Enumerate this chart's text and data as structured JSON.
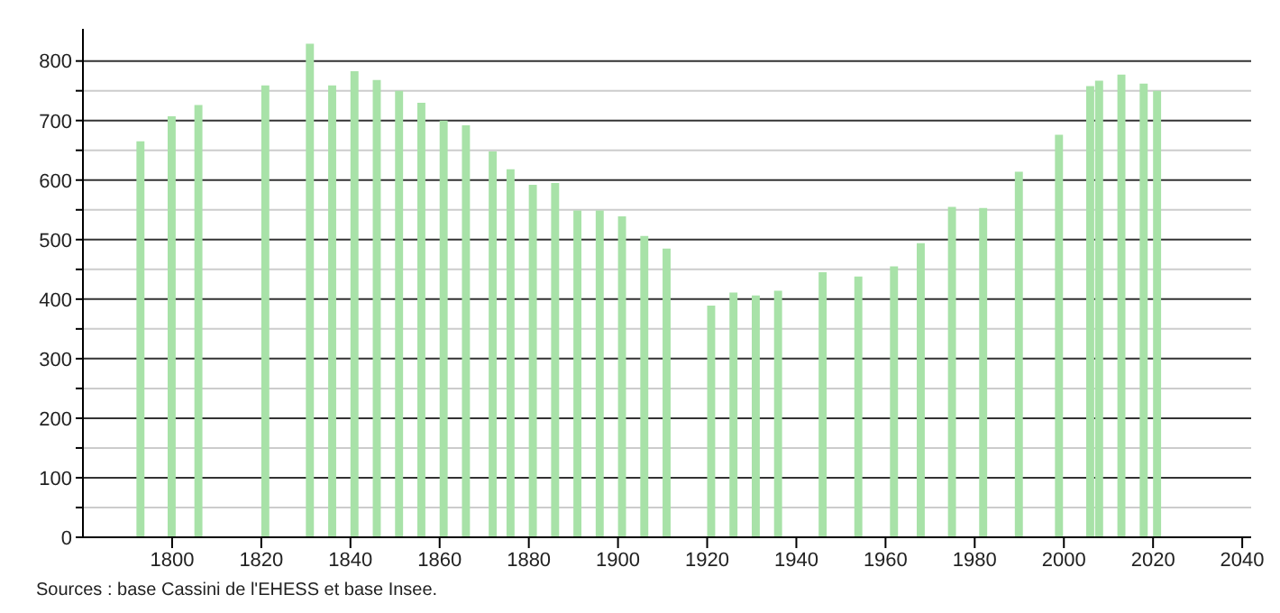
{
  "chart_data": {
    "type": "bar",
    "x": [
      1793,
      1800,
      1806,
      1821,
      1831,
      1836,
      1841,
      1846,
      1851,
      1856,
      1861,
      1866,
      1872,
      1876,
      1881,
      1886,
      1891,
      1896,
      1901,
      1906,
      1911,
      1921,
      1926,
      1931,
      1936,
      1946,
      1954,
      1962,
      1968,
      1975,
      1982,
      1990,
      1999,
      2006,
      2008,
      2013,
      2018,
      2021
    ],
    "values": [
      665,
      707,
      726,
      759,
      829,
      759,
      783,
      768,
      750,
      730,
      700,
      692,
      648,
      618,
      592,
      595,
      549,
      549,
      539,
      506,
      485,
      389,
      411,
      406,
      414,
      445,
      438,
      455,
      494,
      555,
      553,
      614,
      676,
      758,
      767,
      777,
      762,
      750
    ],
    "color": "#a8e2a8",
    "xlim": [
      1780,
      2042
    ],
    "xticks": [
      1800,
      1820,
      1840,
      1860,
      1880,
      1900,
      1920,
      1940,
      1960,
      1980,
      2000,
      2020,
      2040
    ],
    "ylim": [
      0,
      854
    ],
    "yticks": [
      0,
      {
        "value": 50,
        "label": null
      },
      100,
      {
        "value": 150,
        "label": null
      },
      200,
      {
        "value": 250,
        "label": null
      },
      300,
      {
        "value": 350,
        "label": null
      },
      400,
      {
        "value": 450,
        "label": null
      },
      500,
      {
        "value": 550,
        "label": null
      },
      600,
      {
        "value": 650,
        "label": null
      },
      700,
      {
        "value": 750,
        "label": null
      },
      800
    ],
    "grid": "y",
    "annotations": [
      "Sources : base Cassini de l'EHESS et base Insee."
    ]
  }
}
